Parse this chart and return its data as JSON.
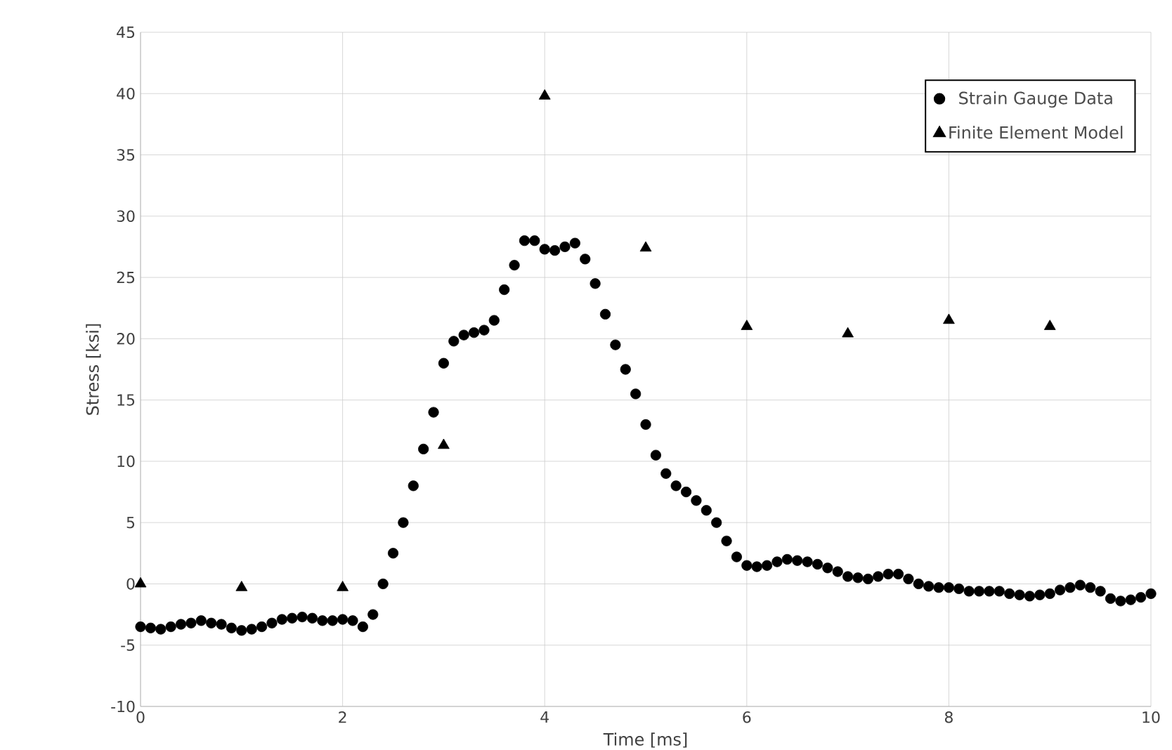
{
  "chart_data": {
    "type": "scatter",
    "xlabel": "Time [ms]",
    "ylabel": "Stress [ksi]",
    "xlim": [
      0,
      10
    ],
    "xticks": [
      0,
      2,
      4,
      6,
      8,
      10
    ],
    "ylim": [
      -10,
      45
    ],
    "yticks": [
      -10,
      -5,
      0,
      5,
      10,
      15,
      20,
      25,
      30,
      35,
      40,
      45
    ],
    "grid": true,
    "legend": "top right",
    "series": [
      {
        "name": "Strain Gauge Data",
        "color": "#000000",
        "marker": "circle",
        "x": [
          0,
          0.1,
          0.2,
          0.3,
          0.4,
          0.5,
          0.6,
          0.7,
          0.8,
          0.9,
          1.0,
          1.1,
          1.2,
          1.3,
          1.4,
          1.5,
          1.6,
          1.7,
          1.8,
          1.9,
          2.0,
          2.1,
          2.2,
          2.3,
          2.4,
          2.5,
          2.6,
          2.7,
          2.8,
          2.9,
          3.0,
          3.1,
          3.2,
          3.3,
          3.4,
          3.5,
          3.6,
          3.7,
          3.8,
          3.9,
          4.0,
          4.1,
          4.2,
          4.3,
          4.4,
          4.5,
          4.6,
          4.7,
          4.8,
          4.9,
          5.0,
          5.1,
          5.2,
          5.3,
          5.4,
          5.5,
          5.6,
          5.7,
          5.8,
          5.9,
          6.0,
          6.1,
          6.2,
          6.3,
          6.4,
          6.5,
          6.6,
          6.7,
          6.8,
          6.9,
          7.0,
          7.1,
          7.2,
          7.3,
          7.4,
          7.5,
          7.6,
          7.7,
          7.8,
          7.9,
          8.0,
          8.1,
          8.2,
          8.3,
          8.4,
          8.5,
          8.6,
          8.7,
          8.8,
          8.9,
          9.0,
          9.1,
          9.2,
          9.3,
          9.4,
          9.5,
          9.6,
          9.7,
          9.8,
          9.9,
          10.0
        ],
        "values": [
          -3.5,
          -3.6,
          -3.7,
          -3.5,
          -3.3,
          -3.2,
          -3.0,
          -3.2,
          -3.3,
          -3.6,
          -3.8,
          -3.7,
          -3.5,
          -3.2,
          -2.9,
          -2.8,
          -2.7,
          -2.8,
          -3.0,
          -3.0,
          -2.9,
          -3.0,
          -3.5,
          -2.5,
          0,
          2.5,
          5,
          8,
          11,
          14,
          18,
          19.8,
          20.3,
          20.5,
          20.7,
          21.5,
          24,
          26,
          28,
          28,
          27.3,
          27.2,
          27.5,
          27.8,
          26.5,
          24.5,
          22,
          19.5,
          17.5,
          15.5,
          13,
          10.5,
          9,
          8,
          7.5,
          6.8,
          6,
          5,
          3.5,
          2.2,
          1.5,
          1.4,
          1.5,
          1.8,
          2.0,
          1.9,
          1.8,
          1.6,
          1.3,
          1.0,
          0.6,
          0.5,
          0.4,
          0.6,
          0.8,
          0.8,
          0.4,
          0.0,
          -0.2,
          -0.3,
          -0.3,
          -0.4,
          -0.6,
          -0.6,
          -0.6,
          -0.6,
          -0.8,
          -0.9,
          -1.0,
          -0.9,
          -0.8,
          -0.5,
          -0.3,
          -0.1,
          -0.3,
          -0.6,
          -1.2,
          -1.4,
          -1.3,
          -1.1,
          -0.8
        ]
      },
      {
        "name": "Finite Element Model",
        "color": "#000000",
        "marker": "triangle",
        "x": [
          0,
          1,
          2,
          3,
          4,
          5,
          6,
          7,
          8,
          9
        ],
        "values": [
          0,
          -0.3,
          -0.3,
          11.3,
          39.8,
          27.4,
          21,
          20.4,
          21.5,
          21
        ]
      }
    ]
  }
}
